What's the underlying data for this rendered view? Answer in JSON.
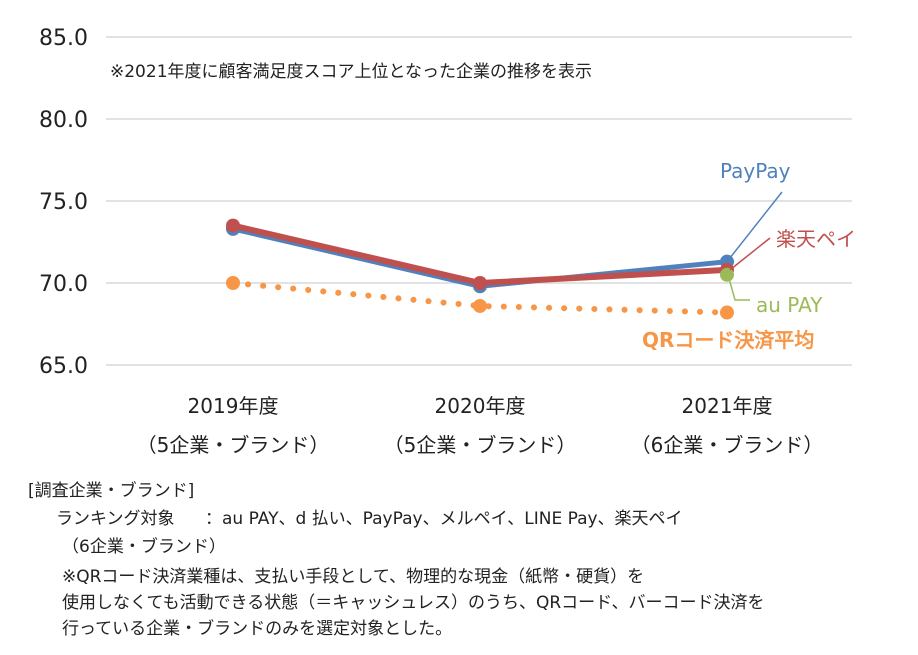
{
  "chart_data": {
    "type": "line",
    "annotation": "※2021年度に顧客満足度スコア上位となった企業の推移を表示",
    "categories": [
      "2019年度",
      "2020年度",
      "2021年度"
    ],
    "category_sublabels": [
      "（5企業・ブランド）",
      "（5企業・ブランド）",
      "（6企業・ブランド）"
    ],
    "y_ticks": [
      "85.0",
      "80.0",
      "75.0",
      "70.0",
      "65.0"
    ],
    "ylim": [
      65,
      85
    ],
    "series": [
      {
        "name": "PayPay",
        "color": "#4f81bd",
        "style": "solid",
        "values": [
          73.3,
          69.8,
          71.3
        ]
      },
      {
        "name": "楽天ペイ",
        "color": "#c0504d",
        "style": "solid",
        "values": [
          73.5,
          70.0,
          70.8
        ]
      },
      {
        "name": "au PAY",
        "color": "#9bbb59",
        "style": "point",
        "values": [
          null,
          null,
          70.5
        ]
      },
      {
        "name": "QRコード決済平均",
        "color": "#f79646",
        "style": "dotted",
        "values": [
          70.0,
          68.6,
          68.2
        ]
      }
    ]
  },
  "footer": {
    "heading": "[調査企業・ブランド]",
    "ranking_label": "ランキング対象",
    "ranking_value": "：au PAY、d 払い、PayPay、メルペイ、LINE Pay、楽天ペイ",
    "ranking_count": "（6企業・ブランド）",
    "note_line1": "※QRコード決済業種は、支払い手段として、物理的な現金（紙幣・硬貨）を",
    "note_line2": "使用しなくても活動できる状態（＝キャッシュレス）のうち、QRコード、バーコード決済を",
    "note_line3": "行っている企業・ブランドのみを選定対象とした。"
  }
}
